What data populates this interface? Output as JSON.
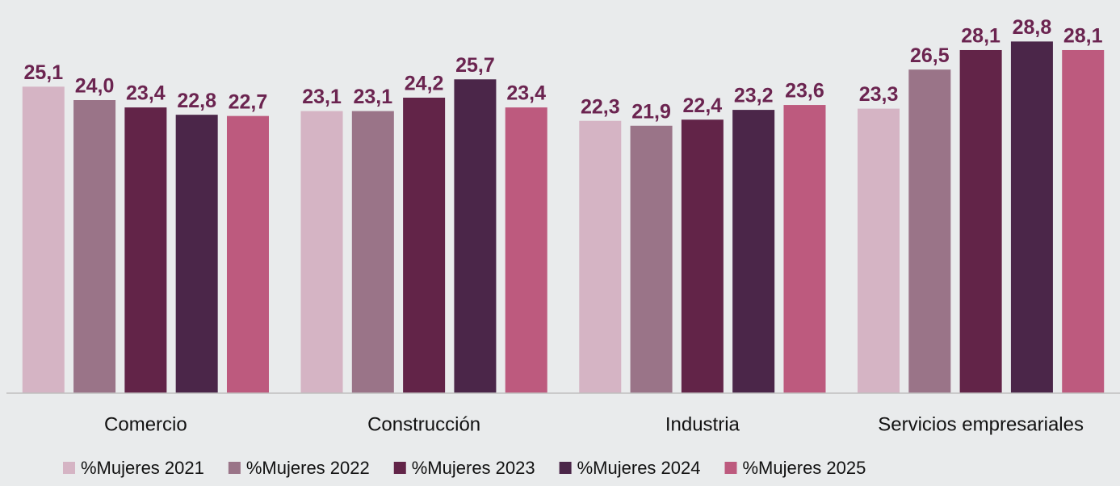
{
  "chart_data": {
    "type": "bar",
    "categories": [
      "Comercio",
      "Construcción",
      "Industria",
      "Servicios empresariales"
    ],
    "series": [
      {
        "name": "%Mujeres 2021",
        "color": "#d5b4c4",
        "values": [
          25.1,
          23.1,
          22.3,
          23.3
        ],
        "value_labels": [
          "25,1",
          "23,1",
          "22,3",
          "23,3"
        ]
      },
      {
        "name": "%Mujeres 2022",
        "color": "#9a7488",
        "values": [
          24.0,
          23.1,
          21.9,
          26.5
        ],
        "value_labels": [
          "24,0",
          "23,1",
          "21,9",
          "26,5"
        ]
      },
      {
        "name": "%Mujeres 2023",
        "color": "#622448",
        "values": [
          23.4,
          24.2,
          22.4,
          28.1
        ],
        "value_labels": [
          "23,4",
          "24,2",
          "22,4",
          "28,1"
        ]
      },
      {
        "name": "%Mujeres 2024",
        "color": "#4b2649",
        "values": [
          22.8,
          25.7,
          23.2,
          28.8
        ],
        "value_labels": [
          "22,8",
          "25,7",
          "23,2",
          "28,8"
        ]
      },
      {
        "name": "%Mujeres 2025",
        "color": "#bd5a7e",
        "values": [
          22.7,
          23.4,
          23.6,
          28.1
        ],
        "value_labels": [
          "22,7",
          "23,4",
          "23,6",
          "28,1"
        ]
      }
    ],
    "ylim": [
      0,
      32
    ],
    "legend": "bottom"
  }
}
